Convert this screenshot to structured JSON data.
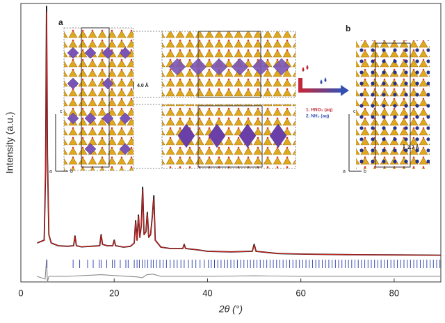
{
  "chart_data": {
    "type": "line",
    "xlabel": "2θ (°)",
    "ylabel": "Intensity (a.u.)",
    "xlim": [
      0,
      90
    ],
    "xticks": [
      0,
      20,
      40,
      60,
      80
    ],
    "ylim": [
      0,
      100
    ],
    "series": [
      {
        "color": "#111111",
        "x": [
          3.5,
          5.0,
          5.3,
          5.5,
          5.7,
          6.0,
          6.5,
          8,
          10,
          11.3,
          11.6,
          11.9,
          13,
          15,
          16.9,
          17.2,
          17.5,
          18.5,
          19.7,
          20.0,
          20.3,
          22,
          23.5,
          24.3,
          24.6,
          24.9,
          25.2,
          25.5,
          25.8,
          26.1,
          26.4,
          26.8,
          27.1,
          27.4,
          27.8,
          28.2,
          28.5,
          28.8,
          30,
          32,
          34.7,
          35,
          35.3,
          38,
          40,
          45,
          49.6,
          50.0,
          50.4,
          55,
          60,
          70,
          80,
          90
        ],
        "values": [
          14,
          15,
          40,
          99,
          45,
          17,
          14,
          13,
          12.8,
          13,
          16.5,
          13,
          12.6,
          12.8,
          13,
          17,
          13.5,
          13,
          13,
          15,
          13,
          12.5,
          12.8,
          14,
          22,
          15,
          24,
          16,
          20,
          34,
          17,
          18,
          25,
          16,
          17,
          24,
          31,
          15,
          12.5,
          12,
          12,
          13.5,
          12,
          11.5,
          11,
          10.8,
          11,
          13.5,
          11,
          10.2,
          10,
          9.8,
          9.7,
          9.6
        ]
      },
      {
        "color": "#d42020",
        "x": [
          3.5,
          5.0,
          5.3,
          5.5,
          5.7,
          6.0,
          6.5,
          8,
          10,
          11.3,
          11.6,
          11.9,
          13,
          15,
          16.9,
          17.2,
          17.5,
          18.5,
          19.7,
          20.0,
          20.3,
          22,
          23.5,
          24.3,
          24.6,
          24.9,
          25.2,
          25.5,
          25.8,
          26.1,
          26.4,
          26.8,
          27.1,
          27.4,
          27.8,
          28.2,
          28.5,
          28.8,
          30,
          32,
          34.7,
          35,
          35.3,
          38,
          40,
          45,
          49.6,
          50.0,
          50.4,
          55,
          60,
          70,
          80,
          90
        ],
        "values": [
          14,
          15,
          41,
          97,
          44,
          17,
          14,
          13,
          12.8,
          13,
          16.2,
          13,
          12.6,
          12.8,
          13,
          16.8,
          13.5,
          13,
          13,
          14.8,
          13,
          12.5,
          12.8,
          14,
          21.5,
          15,
          23.5,
          16,
          19.5,
          33,
          17,
          18,
          24.5,
          16,
          17,
          23.5,
          30,
          15,
          12.5,
          12,
          12,
          13.3,
          12,
          11.5,
          11,
          10.8,
          11,
          13.2,
          11,
          10.2,
          10,
          9.8,
          9.7,
          9.6
        ]
      },
      {
        "color": "#8a8a8a",
        "x": [
          3.5,
          5.2,
          5.5,
          5.7,
          6.0,
          10,
          17.2,
          20,
          25,
          26,
          27,
          28.3,
          30,
          40,
          50,
          60,
          90
        ],
        "values": [
          2,
          1,
          8,
          0,
          2,
          2,
          2.6,
          2.3,
          1.8,
          1.5,
          2.6,
          2.8,
          2,
          2,
          2.2,
          2,
          2
        ]
      }
    ],
    "reflections": {
      "color": "#3a4db0",
      "positions": [
        5.6,
        11.2,
        12.6,
        14.3,
        15.5,
        16.8,
        17.2,
        18.4,
        19.6,
        20.1,
        21.3,
        22.5,
        23.0,
        24.3,
        24.9,
        25.4,
        26.0,
        26.6,
        27.2,
        27.9,
        28.4,
        29.1,
        29.8,
        30.5,
        31.2,
        32.0,
        32.8,
        33.5,
        34.3,
        35.0,
        35.9,
        36.7,
        37.5,
        38.4,
        39.3,
        40.2,
        40.8,
        41.5,
        42.2,
        42.9,
        43.6,
        44.3,
        45.0,
        45.7,
        46.4,
        47.1,
        47.8,
        48.5,
        49.2,
        49.9,
        50.6,
        51.3,
        52.0,
        52.7,
        53.4,
        54.1,
        54.8,
        55.5,
        56.2,
        56.9,
        57.6,
        58.3,
        59.0,
        59.7,
        60.4,
        61.1,
        61.8,
        62.5,
        63.2,
        63.9,
        64.6,
        65.3,
        66.0,
        66.7,
        67.4,
        68.1,
        68.8,
        69.5,
        70.2,
        70.9,
        71.6,
        72.3,
        73.0,
        73.7,
        74.4,
        75.1,
        75.8,
        76.5,
        77.2,
        77.9,
        78.6,
        79.3,
        80.0,
        80.7,
        81.4,
        82.1,
        82.8,
        83.5,
        84.2,
        84.9,
        85.6,
        86.3,
        87.0,
        87.7,
        88.4,
        89.1,
        89.8
      ]
    },
    "annotations": [
      "a",
      "b",
      "4.0 Å",
      "2.7 Å",
      "1. HNO₃ (aq)",
      "2. NH₃ (aq)",
      "c",
      "a",
      "b",
      "c",
      "a",
      "b"
    ]
  }
}
